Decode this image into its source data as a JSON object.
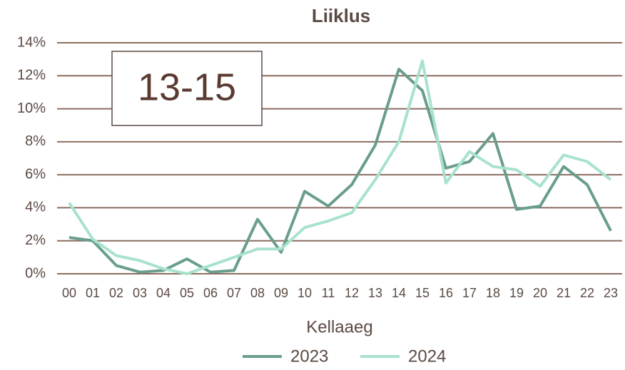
{
  "chart_data": {
    "type": "line",
    "title": "Liiklus",
    "xlabel": "Kellaaeg",
    "annotation": "13-15",
    "categories": [
      "00",
      "01",
      "02",
      "03",
      "04",
      "05",
      "06",
      "07",
      "08",
      "09",
      "10",
      "11",
      "12",
      "13",
      "14",
      "15",
      "16",
      "17",
      "18",
      "19",
      "20",
      "21",
      "22",
      "23"
    ],
    "series": [
      {
        "name": "2023",
        "color": "#6a9e8c",
        "values": [
          2.2,
          2.0,
          0.5,
          0.1,
          0.2,
          0.9,
          0.1,
          0.2,
          3.3,
          1.3,
          5.0,
          4.1,
          5.4,
          7.8,
          12.4,
          11.1,
          6.4,
          6.8,
          8.5,
          3.9,
          4.1,
          6.5,
          5.4,
          2.6
        ]
      },
      {
        "name": "2024",
        "color": "#a8e2cd",
        "values": [
          4.3,
          2.1,
          1.1,
          0.8,
          0.3,
          0.0,
          0.5,
          1.0,
          1.5,
          1.5,
          2.8,
          3.2,
          3.7,
          5.7,
          8.0,
          12.9,
          5.5,
          7.4,
          6.5,
          6.3,
          5.3,
          7.2,
          6.8,
          5.7
        ]
      }
    ],
    "ylim": [
      0,
      14
    ],
    "yticks": [
      {
        "value": 0,
        "label": "0%"
      },
      {
        "value": 2,
        "label": "2%"
      },
      {
        "value": 4,
        "label": "4%"
      },
      {
        "value": 6,
        "label": "6%"
      },
      {
        "value": 8,
        "label": "8%"
      },
      {
        "value": 10,
        "label": "10%"
      },
      {
        "value": 12,
        "label": "12%"
      },
      {
        "value": 14,
        "label": "14%"
      }
    ],
    "grid": true
  }
}
